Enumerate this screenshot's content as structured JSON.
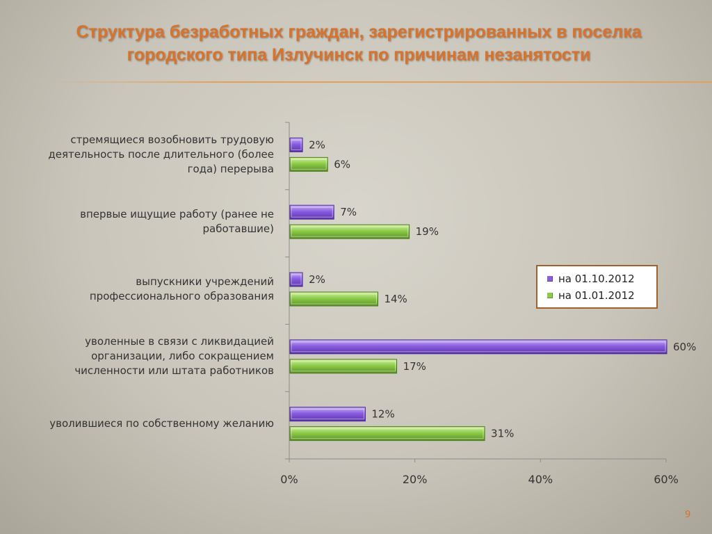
{
  "slide": {
    "title_line1": "Структура безработных граждан, зарегистрированных в поселка",
    "title_line2": "городского типа Излучинск по причинам незанятости",
    "page_number": "9"
  },
  "legend": {
    "items": [
      {
        "label": "на 01.10.2012",
        "color": "#8a5ce0"
      },
      {
        "label": "на 01.01.2012",
        "color": "#8ccc48"
      }
    ]
  },
  "chart_data": {
    "type": "bar",
    "orientation": "horizontal",
    "categories": [
      "стремящиеся возобновить трудовую деятельность после длительного (более года) перерыва",
      "впервые ищущие работу (ранее не работавшие)",
      "выпускники учреждений профессионального образования",
      "уволенные в связи с ликвидацией организации, либо сокращением численности или штата работников",
      "уволившиеся по собственному желанию"
    ],
    "category_lines": [
      [
        "стремящиеся возобновить трудовую",
        "деятельность после длительного (более",
        "года) перерыва"
      ],
      [
        "впервые ищущие работу (ранее не",
        "работавшие)"
      ],
      [
        "выпускники учреждений",
        "профессионального образования"
      ],
      [
        "уволенные в связи с ликвидацией",
        "организации, либо сокращением",
        "численности или штата работников"
      ],
      [
        "уволившиеся по собственному желанию"
      ]
    ],
    "series": [
      {
        "name": "на 01.10.2012",
        "values": [
          2,
          7,
          2,
          60,
          12
        ],
        "labels": [
          "2%",
          "7%",
          "2%",
          "60%",
          "12%"
        ],
        "color": "#8a5ce0"
      },
      {
        "name": "на 01.01.2012",
        "values": [
          6,
          19,
          14,
          17,
          31
        ],
        "labels": [
          "6%",
          "19%",
          "14%",
          "17%",
          "31%"
        ],
        "color": "#8ccc48"
      }
    ],
    "x_ticks": [
      "0%",
      "20%",
      "40%",
      "60%"
    ],
    "x_tick_values": [
      0,
      20,
      40,
      60
    ],
    "xlim": [
      0,
      60
    ],
    "grid": false,
    "legend_position": "right"
  }
}
